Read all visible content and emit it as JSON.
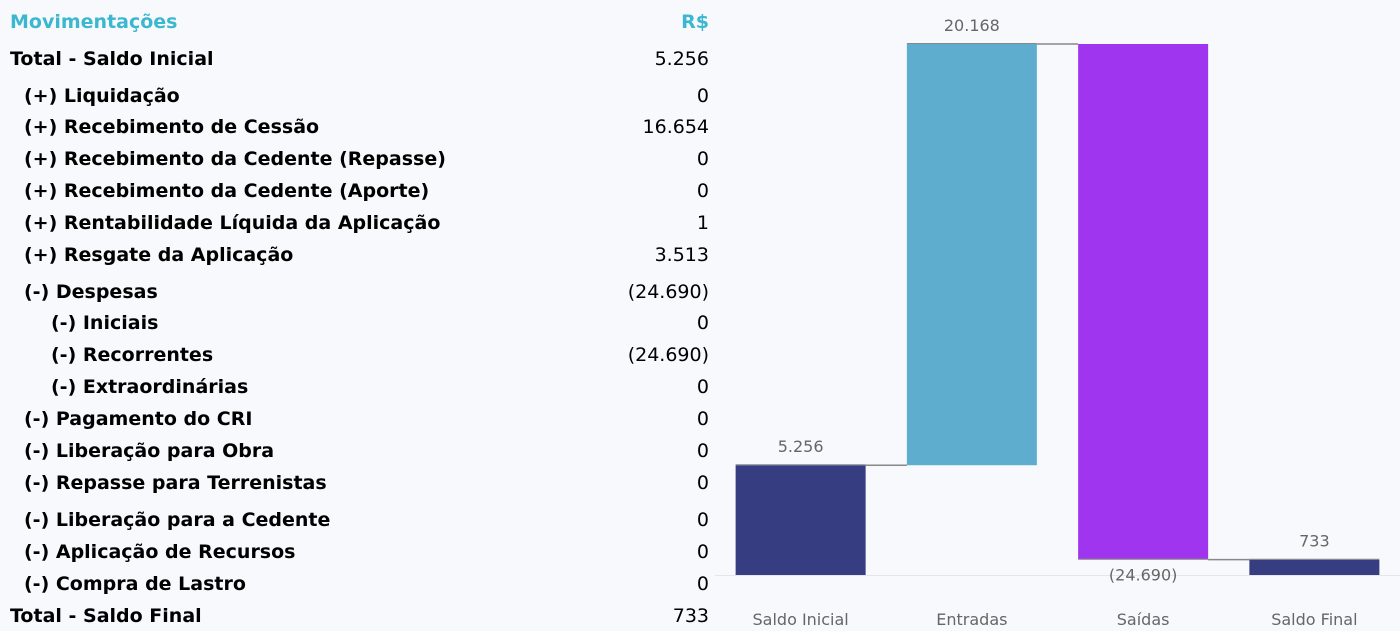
{
  "table": {
    "header": {
      "label": "Movimentações",
      "value": "R$"
    },
    "rows": [
      {
        "label": "Total - Saldo Inicial",
        "value": "5.256",
        "level": 0
      },
      {
        "label": "(+) Liquidação",
        "value": "0",
        "level": 1
      },
      {
        "label": "(+) Recebimento de Cessão",
        "value": "16.654",
        "level": 1
      },
      {
        "label": "(+) Recebimento da Cedente (Repasse)",
        "value": "0",
        "level": 1
      },
      {
        "label": "(+) Recebimento da Cedente (Aporte)",
        "value": "0",
        "level": 1
      },
      {
        "label": "(+) Rentabilidade Líquida da Aplicação",
        "value": "1",
        "level": 1
      },
      {
        "label": "(+) Resgate da Aplicação",
        "value": "3.513",
        "level": 1
      },
      {
        "label": "(-) Despesas",
        "value": "(24.690)",
        "level": 1
      },
      {
        "label": "(-) Iniciais",
        "value": "0",
        "level": 2
      },
      {
        "label": "(-) Recorrentes",
        "value": "(24.690)",
        "level": 2
      },
      {
        "label": "(-) Extraordinárias",
        "value": "0",
        "level": 2
      },
      {
        "label": "(-) Pagamento do CRI",
        "value": "0",
        "level": 1
      },
      {
        "label": "(-) Liberação para Obra",
        "value": "0",
        "level": 1
      },
      {
        "label": "(-) Repasse para Terrenistas",
        "value": "0",
        "level": 1
      },
      {
        "label": "(-) Liberação para a Cedente",
        "value": "0",
        "level": 1
      },
      {
        "label": "(-) Aplicação de Recursos",
        "value": "0",
        "level": 1
      },
      {
        "label": "(-) Compra de Lastro",
        "value": "0",
        "level": 1
      },
      {
        "label": "Total - Saldo Final",
        "value": "733",
        "level": 0
      }
    ]
  },
  "chart_data": {
    "type": "bar",
    "subtype": "waterfall",
    "categories": [
      "Saldo Inicial",
      "Entradas",
      "Saídas",
      "Saldo Final"
    ],
    "values": [
      5256,
      20168,
      -24690,
      733
    ],
    "kinds": [
      "total",
      "delta",
      "delta",
      "total"
    ],
    "data_labels": [
      "5.256",
      "20.168",
      "(24.690)",
      "733"
    ],
    "colors": [
      "#363d80",
      "#5eacce",
      "#a035f0",
      "#363d80"
    ],
    "connector_color": "#888888",
    "ylim": [
      0,
      25424
    ],
    "grid": false,
    "legend": "none"
  }
}
